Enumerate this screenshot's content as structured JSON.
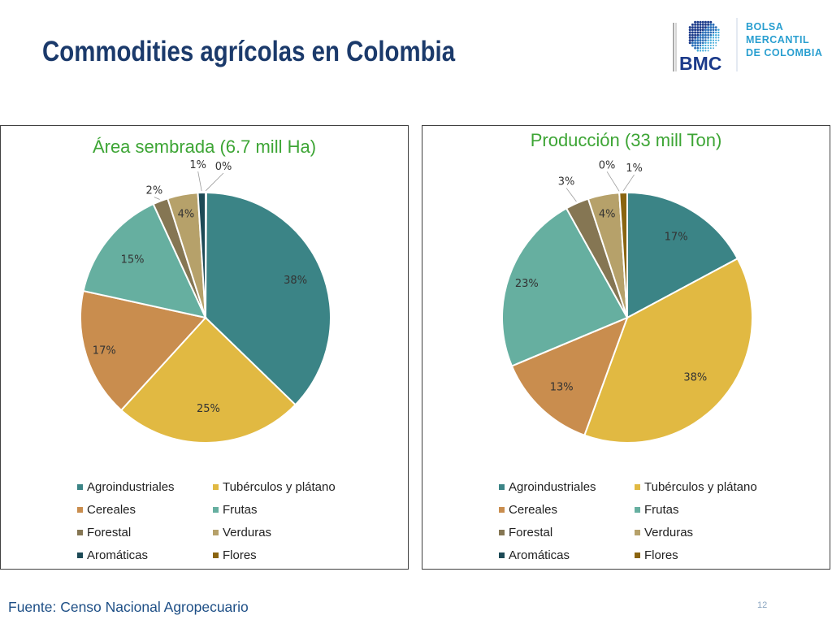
{
  "slide": {
    "title": "Commodities agrícolas en Colombia",
    "footer": "Fuente: Censo Nacional Agropecuario",
    "page_number": "12"
  },
  "logo": {
    "mark": "BMC",
    "line1": "BOLSA",
    "line2": "MERCANTIL",
    "line3": "DE COLOMBIA"
  },
  "colors": {
    "Agroindustriales": "#3b8486",
    "Tubérculos y plátano": "#e1b942",
    "Cereales": "#c98d4e",
    "Frutas": "#66afa0",
    "Forestal": "#857653",
    "Verduras": "#b6a16a",
    "Aromáticas": "#1d4a56",
    "Flores": "#8a6410"
  },
  "chart_data": [
    {
      "type": "pie",
      "title": "Área sembrada (6.7 mill Ha)",
      "categories": [
        "Agroindustriales",
        "Tubérculos y plátano",
        "Cereales",
        "Frutas",
        "Forestal",
        "Verduras",
        "Aromáticas",
        "Flores"
      ],
      "values": [
        38,
        25,
        17,
        15,
        2,
        4,
        1,
        0
      ],
      "labels": [
        "38%",
        "25%",
        "17%",
        "15%",
        "2%",
        "4%",
        "1%",
        "0%"
      ],
      "legend": "bottom"
    },
    {
      "type": "pie",
      "title": "Producción (33 mill Ton)",
      "categories": [
        "Agroindustriales",
        "Tubérculos y plátano",
        "Cereales",
        "Frutas",
        "Forestal",
        "Verduras",
        "Aromáticas",
        "Flores"
      ],
      "values": [
        17,
        38,
        13,
        23,
        3,
        4,
        0,
        1
      ],
      "labels": [
        "17%",
        "38%",
        "13%",
        "23%",
        "3%",
        "4%",
        "0%",
        "1%"
      ],
      "legend": "bottom"
    }
  ]
}
